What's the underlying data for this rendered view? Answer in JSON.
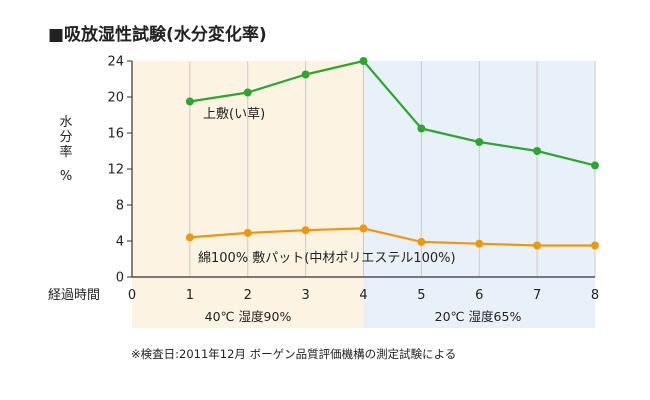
{
  "chart_data": {
    "type": "line",
    "title": "■吸放湿性試験(水分変化率)",
    "xlabel": "経過時間",
    "ylabel": [
      "水",
      "分",
      "率",
      "%"
    ],
    "x": [
      0,
      1,
      2,
      3,
      4,
      5,
      6,
      7,
      8
    ],
    "xlim": [
      0,
      8
    ],
    "ylim": [
      0,
      24
    ],
    "yticks": [
      0,
      4,
      8,
      12,
      16,
      20,
      24
    ],
    "grid": {
      "vertical": true,
      "horizontal": false
    },
    "series": [
      {
        "name": "上敷(い草)",
        "color": "#2ea531",
        "x": [
          1,
          2,
          3,
          4,
          5,
          6,
          7,
          8
        ],
        "values": [
          19.5,
          20.5,
          22.5,
          24.0,
          16.5,
          15.0,
          14.0,
          12.4
        ]
      },
      {
        "name": "綿100% 敷パット(中材ポリエステル100%)",
        "color": "#f0960a",
        "x": [
          1,
          2,
          3,
          4,
          5,
          6,
          7,
          8
        ],
        "values": [
          4.4,
          4.9,
          5.2,
          5.4,
          3.9,
          3.7,
          3.5,
          3.5
        ]
      }
    ],
    "phases": [
      {
        "label": "40℃ 湿度90%",
        "x_range": [
          0,
          4
        ],
        "color": "#fdf3e3"
      },
      {
        "label": "20℃ 湿度65%",
        "x_range": [
          4,
          8
        ],
        "color": "#e8f1f9"
      }
    ],
    "note": "※検査日:2011年12月 ボーゲン品質評価機構の測定試験による"
  }
}
